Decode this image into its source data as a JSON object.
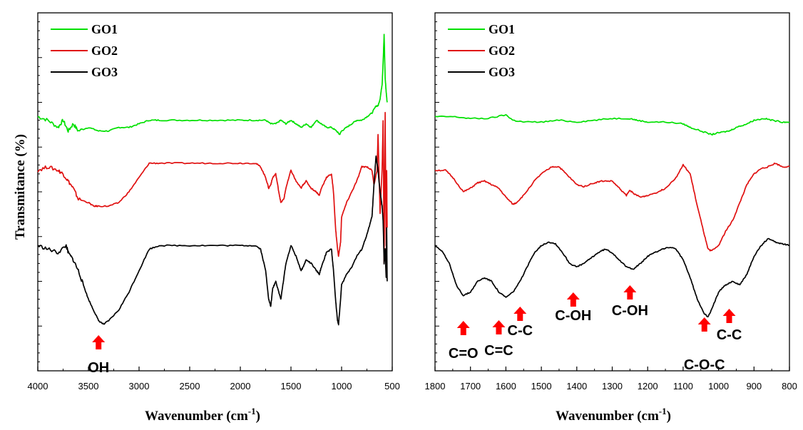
{
  "figure": {
    "ylabel": "Transmitance (%)",
    "xlabel": "Wavenumber (cm",
    "xlabel_sup": "-1",
    "xlabel_end": ")"
  },
  "chart_data": [
    {
      "type": "line",
      "xlabel": "Wavenumber (cm-1)",
      "ylabel": "Transmitance (%)",
      "xlim": [
        4000,
        500
      ],
      "ylim": [
        0,
        100
      ],
      "x_reversed": true,
      "xticks": [
        4000,
        3500,
        3000,
        2500,
        2000,
        1500,
        1000,
        500
      ],
      "xtick_labels": [
        "4000",
        "3500",
        "3000",
        "2500",
        "2000",
        "1500",
        "1000",
        "500"
      ],
      "y_tick_labels_shown": false,
      "legend_position": "top-left",
      "series": [
        {
          "name": "GO1",
          "color": "#00e000",
          "x": [
            4000,
            3900,
            3800,
            3750,
            3700,
            3650,
            3600,
            3500,
            3400,
            3300,
            3200,
            3100,
            3000,
            2900,
            2800,
            2600,
            2400,
            2200,
            2000,
            1850,
            1750,
            1700,
            1650,
            1600,
            1550,
            1500,
            1450,
            1400,
            1350,
            1300,
            1250,
            1200,
            1150,
            1100,
            1050,
            1020,
            1000,
            950,
            900,
            850,
            800,
            750,
            700,
            660,
            640,
            620,
            600,
            590,
            580,
            570,
            560,
            550
          ],
          "values": [
            71,
            70,
            68,
            70,
            67,
            69,
            67,
            68,
            67,
            67,
            68,
            68,
            69,
            70,
            70,
            70,
            70,
            70,
            70,
            70,
            70,
            69,
            69,
            70,
            69,
            70,
            69,
            68,
            69,
            68,
            70,
            69,
            68,
            68,
            67,
            66,
            67,
            68,
            69,
            70,
            70,
            71,
            72,
            74,
            74,
            76,
            80,
            86,
            94,
            82,
            78,
            75
          ]
        },
        {
          "name": "GO2",
          "color": "#e01010",
          "x": [
            4000,
            3900,
            3800,
            3750,
            3700,
            3650,
            3600,
            3500,
            3450,
            3400,
            3300,
            3200,
            3100,
            3000,
            2900,
            2800,
            2600,
            2400,
            2200,
            2000,
            1850,
            1800,
            1750,
            1720,
            1700,
            1680,
            1650,
            1620,
            1600,
            1570,
            1550,
            1500,
            1450,
            1400,
            1380,
            1350,
            1300,
            1250,
            1220,
            1200,
            1150,
            1100,
            1080,
            1060,
            1040,
            1030,
            1010,
            1000,
            950,
            900,
            850,
            800,
            750,
            700,
            680,
            650,
            640,
            620,
            600,
            590,
            580,
            570,
            560,
            555,
            550
          ],
          "values": [
            56,
            57,
            56,
            55,
            53,
            51,
            48,
            47,
            46,
            46,
            46,
            47,
            50,
            54,
            58,
            58,
            58,
            58,
            58,
            58,
            58,
            57,
            54,
            51,
            52,
            54,
            55,
            50,
            47,
            48,
            51,
            56,
            53,
            51,
            52,
            53,
            51,
            50,
            49,
            51,
            54,
            55,
            50,
            40,
            34,
            32,
            36,
            43,
            47,
            50,
            53,
            57,
            57,
            56,
            52,
            56,
            66,
            44,
            56,
            70,
            30,
            72,
            35,
            56,
            40
          ]
        },
        {
          "name": "GO3",
          "color": "#000000",
          "x": [
            4000,
            3900,
            3800,
            3720,
            3700,
            3650,
            3600,
            3550,
            3500,
            3450,
            3400,
            3350,
            3300,
            3200,
            3100,
            3000,
            2900,
            2800,
            2600,
            2400,
            2200,
            2000,
            1850,
            1800,
            1750,
            1720,
            1700,
            1680,
            1650,
            1620,
            1600,
            1580,
            1550,
            1500,
            1450,
            1400,
            1380,
            1350,
            1300,
            1250,
            1220,
            1200,
            1150,
            1100,
            1080,
            1060,
            1040,
            1030,
            1010,
            1000,
            950,
            900,
            850,
            800,
            750,
            700,
            680,
            660,
            640,
            620,
            600,
            590,
            580,
            570,
            560,
            555,
            550
          ],
          "values": [
            35,
            34,
            33,
            35,
            33,
            31,
            28,
            24,
            20,
            17,
            14,
            13,
            14,
            17,
            22,
            28,
            34,
            35,
            35,
            35,
            35,
            35,
            35,
            34,
            28,
            20,
            18,
            23,
            25,
            22,
            20,
            24,
            30,
            35,
            32,
            28,
            29,
            31,
            30,
            28,
            27,
            29,
            33,
            34,
            28,
            20,
            14,
            13,
            20,
            24,
            27,
            29,
            32,
            34,
            38,
            43,
            52,
            60,
            56,
            50,
            46,
            42,
            30,
            34,
            26,
            40,
            25
          ]
        }
      ]
    },
    {
      "type": "line",
      "xlabel": "Wavenumber (cm-1)",
      "ylabel": "",
      "xlim": [
        1800,
        800
      ],
      "ylim": [
        0,
        100
      ],
      "x_reversed": true,
      "xticks": [
        1800,
        1700,
        1600,
        1500,
        1400,
        1300,
        1200,
        1100,
        1000,
        900,
        800
      ],
      "xtick_labels": [
        "1800",
        "1700",
        "1600",
        "1500",
        "1400",
        "1300",
        "1200",
        "1100",
        "1000",
        "900",
        "800"
      ],
      "y_tick_labels_shown": false,
      "legend_position": "top-left",
      "series": [
        {
          "name": "GO1",
          "color": "#00e000",
          "x": [
            1800,
            1750,
            1700,
            1650,
            1600,
            1580,
            1550,
            1500,
            1450,
            1400,
            1350,
            1300,
            1250,
            1230,
            1200,
            1150,
            1100,
            1080,
            1050,
            1020,
            1000,
            970,
            950,
            920,
            900,
            870,
            850,
            820,
            800
          ],
          "values": [
            71,
            71,
            70.5,
            70.5,
            71.5,
            70,
            69.5,
            69.5,
            70,
            69.5,
            70,
            70.5,
            70.5,
            70,
            69.5,
            69.5,
            69,
            68,
            67,
            66,
            66.5,
            67,
            68,
            69,
            70,
            70.5,
            70,
            69.5,
            69.5
          ]
        },
        {
          "name": "GO2",
          "color": "#e01010",
          "x": [
            1800,
            1770,
            1750,
            1720,
            1700,
            1680,
            1660,
            1640,
            1620,
            1600,
            1580,
            1570,
            1550,
            1520,
            1500,
            1470,
            1450,
            1430,
            1400,
            1380,
            1350,
            1330,
            1300,
            1280,
            1260,
            1250,
            1240,
            1220,
            1200,
            1170,
            1150,
            1120,
            1100,
            1080,
            1060,
            1040,
            1030,
            1020,
            1000,
            980,
            960,
            940,
            920,
            900,
            880,
            860,
            840,
            820,
            800
          ],
          "values": [
            56,
            56,
            54,
            50,
            51,
            52.5,
            53,
            52,
            51,
            48.5,
            46.5,
            47,
            49,
            53,
            55,
            57,
            57,
            55,
            52,
            51.5,
            52.5,
            53,
            53,
            51,
            49,
            50.5,
            49.5,
            48.5,
            49,
            50,
            51,
            54,
            57.5,
            55,
            46,
            38,
            34,
            33.5,
            35,
            39,
            42,
            47,
            52,
            55,
            56.5,
            57,
            58,
            57,
            57
          ]
        },
        {
          "name": "GO3",
          "color": "#000000",
          "x": [
            1800,
            1780,
            1760,
            1740,
            1720,
            1700,
            1680,
            1660,
            1640,
            1620,
            1600,
            1580,
            1560,
            1540,
            1520,
            1500,
            1480,
            1460,
            1440,
            1420,
            1400,
            1380,
            1360,
            1340,
            1320,
            1300,
            1280,
            1260,
            1240,
            1220,
            1200,
            1180,
            1160,
            1140,
            1120,
            1100,
            1080,
            1060,
            1040,
            1030,
            1020,
            1000,
            980,
            960,
            940,
            920,
            900,
            880,
            860,
            840,
            820,
            800
          ],
          "values": [
            35,
            33.5,
            30,
            24,
            21,
            22,
            25,
            26,
            25,
            22,
            20.5,
            22,
            25,
            29,
            33,
            35,
            36,
            35.5,
            33,
            30,
            29,
            30,
            31.5,
            33,
            34,
            33,
            31,
            29,
            28.5,
            30,
            32,
            33,
            34,
            34.5,
            34,
            31,
            26,
            20,
            16,
            15,
            17,
            22,
            24,
            25,
            24,
            27,
            32,
            35,
            37,
            36,
            35.5,
            35
          ]
        }
      ],
      "annotations": [
        {
          "label": "C=O",
          "x": 1720
        },
        {
          "label": "C=C",
          "x": 1620
        },
        {
          "label": "C-C",
          "x": 1560
        },
        {
          "label": "C-OH",
          "x": 1410
        },
        {
          "label": "C-OH",
          "x": 1250
        },
        {
          "label": "C-O-C",
          "x": 1040
        },
        {
          "label": "C-C",
          "x": 970
        }
      ]
    }
  ],
  "left_annotations": [
    {
      "label": "OH",
      "x": 3400
    }
  ]
}
